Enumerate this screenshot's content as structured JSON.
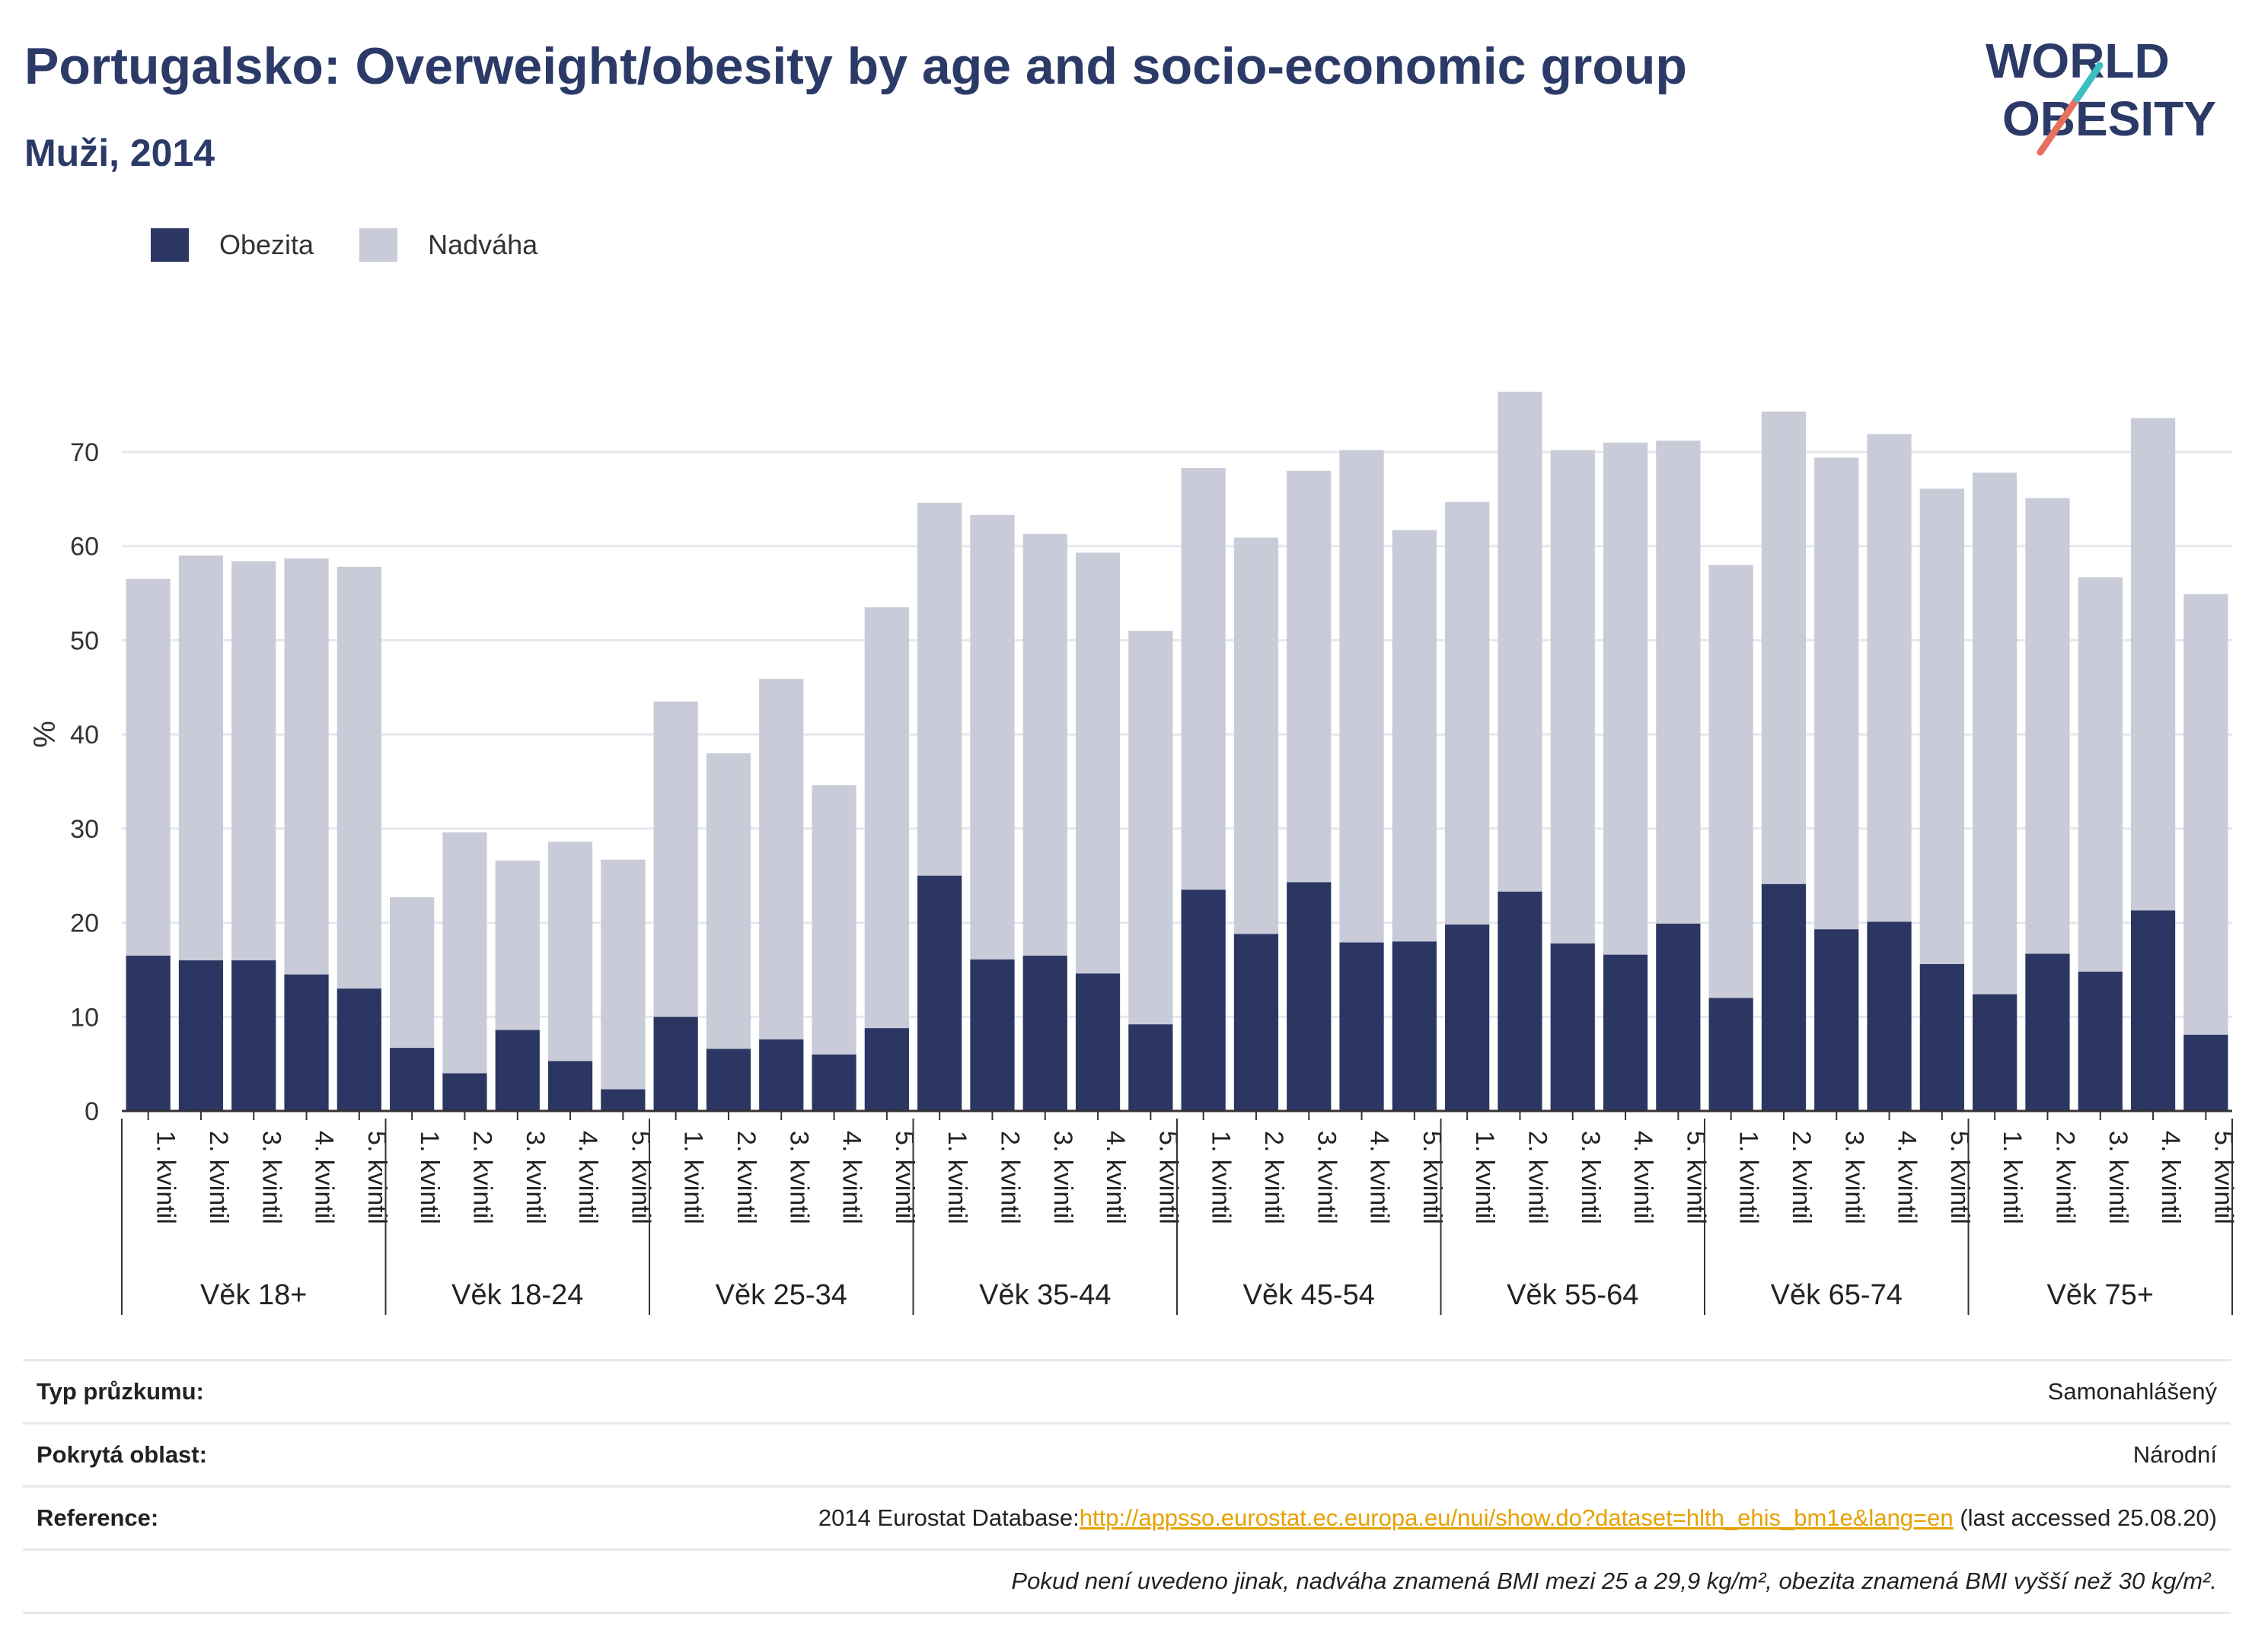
{
  "title": "Portugalsko: Overweight/obesity by age and socio-economic group",
  "subtitle": "Muži, 2014",
  "logo": {
    "line1": "WORLD",
    "line2": "OBESITY"
  },
  "legend": [
    {
      "label": "Obezita",
      "color": "#2b3663"
    },
    {
      "label": "Nadváha",
      "color": "#c9cbd8"
    }
  ],
  "info": {
    "survey_type_label": "Typ průzkumu:",
    "survey_type_value": "Samonahlášený",
    "coverage_label": "Pokrytá oblast:",
    "coverage_value": "Národní",
    "reference_label": "Reference:",
    "reference_prefix": "2014 Eurostat Database:",
    "reference_link": "http://appsso.eurostat.ec.europa.eu/nui/show.do?dataset=hlth_ehis_bm1e&lang=en",
    "reference_suffix": " (last accessed 25.08.20)",
    "note": "Pokud není uvedeno jinak, nadváha znamená BMI mezi 25 a 29,9 kg/m², obezita znamená BMI vyšší než 30 kg/m²."
  },
  "chart_data": {
    "type": "bar",
    "stacked": true,
    "ylabel": "%",
    "ylim": [
      0,
      80
    ],
    "yticks": [
      0,
      10,
      20,
      30,
      40,
      50,
      60,
      70
    ],
    "grid": true,
    "legend_position": "top-left",
    "colors": {
      "obezita": "#2b3663",
      "nadvaha": "#c9cbd8"
    },
    "groups": [
      {
        "label": "Věk 18+",
        "quintiles": [
          "1. kvintil",
          "2. kvintil",
          "3. kvintil",
          "4. kvintil",
          "5. kvintil"
        ],
        "obezita": [
          16.5,
          16.0,
          16.0,
          14.5,
          13.0
        ],
        "total": [
          56.5,
          59.0,
          58.4,
          58.7,
          57.8
        ]
      },
      {
        "label": "Věk 18-24",
        "quintiles": [
          "1. kvintil",
          "2. kvintil",
          "3. kvintil",
          "4. kvintil",
          "5. kvintil"
        ],
        "obezita": [
          6.7,
          4.0,
          8.6,
          5.3,
          2.3
        ],
        "total": [
          22.7,
          29.6,
          26.6,
          28.6,
          26.7
        ]
      },
      {
        "label": "Věk 25-34",
        "quintiles": [
          "1. kvintil",
          "2. kvintil",
          "3. kvintil",
          "4. kvintil",
          "5. kvintil"
        ],
        "obezita": [
          10.0,
          6.6,
          7.6,
          6.0,
          8.8
        ],
        "total": [
          43.5,
          38.0,
          45.9,
          34.6,
          53.5
        ]
      },
      {
        "label": "Věk 35-44",
        "quintiles": [
          "1. kvintil",
          "2. kvintil",
          "3. kvintil",
          "4. kvintil",
          "5. kvintil"
        ],
        "obezita": [
          25.0,
          16.1,
          16.5,
          14.6,
          9.2
        ],
        "total": [
          64.6,
          63.3,
          61.3,
          59.3,
          51.0
        ]
      },
      {
        "label": "Věk 45-54",
        "quintiles": [
          "1. kvintil",
          "2. kvintil",
          "3. kvintil",
          "4. kvintil",
          "5. kvintil"
        ],
        "obezita": [
          23.5,
          18.8,
          24.3,
          17.9,
          18.0
        ],
        "total": [
          68.3,
          60.9,
          68.0,
          70.2,
          61.7
        ]
      },
      {
        "label": "Věk 55-64",
        "quintiles": [
          "1. kvintil",
          "2. kvintil",
          "3. kvintil",
          "4. kvintil",
          "5. kvintil"
        ],
        "obezita": [
          19.8,
          23.3,
          17.8,
          16.6,
          19.9
        ],
        "total": [
          64.7,
          76.4,
          70.2,
          71.0,
          71.2
        ]
      },
      {
        "label": "Věk 65-74",
        "quintiles": [
          "1. kvintil",
          "2. kvintil",
          "3. kvintil",
          "4. kvintil",
          "5. kvintil"
        ],
        "obezita": [
          12.0,
          24.1,
          19.3,
          20.1,
          15.6
        ],
        "total": [
          58.0,
          74.3,
          69.4,
          71.9,
          66.1
        ]
      },
      {
        "label": "Věk 75+",
        "quintiles": [
          "1. kvintil",
          "2. kvintil",
          "3. kvintil",
          "4. kvintil",
          "5. kvintil"
        ],
        "obezita": [
          12.4,
          16.7,
          14.8,
          21.3,
          8.1
        ],
        "total": [
          67.8,
          65.1,
          56.7,
          73.6,
          54.9
        ]
      }
    ]
  }
}
